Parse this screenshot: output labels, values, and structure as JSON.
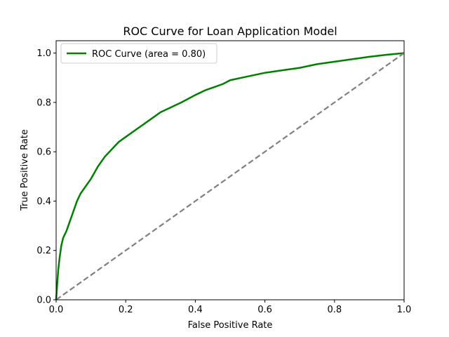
{
  "chart_data": {
    "type": "line",
    "title": "ROC Curve for Loan Application Model",
    "xlabel": "False Positive Rate",
    "ylabel": "True Positive Rate",
    "xlim": [
      0.0,
      1.0
    ],
    "ylim": [
      0.0,
      1.05
    ],
    "x_ticks": [
      "0.0",
      "0.2",
      "0.4",
      "0.6",
      "0.8",
      "1.0"
    ],
    "y_ticks": [
      "0.0",
      "0.2",
      "0.4",
      "0.6",
      "0.8",
      "1.0"
    ],
    "grid": false,
    "legend": {
      "placement": "top-left",
      "entries": [
        "ROC Curve (area = 0.80)"
      ]
    },
    "series": [
      {
        "name": "ROC Curve (area = 0.80)",
        "color": "#008000",
        "style": "solid",
        "x": [
          0.0,
          0.003,
          0.006,
          0.01,
          0.015,
          0.02,
          0.03,
          0.04,
          0.05,
          0.06,
          0.07,
          0.08,
          0.09,
          0.1,
          0.12,
          0.14,
          0.16,
          0.18,
          0.2,
          0.22,
          0.25,
          0.28,
          0.3,
          0.33,
          0.36,
          0.38,
          0.4,
          0.43,
          0.46,
          0.48,
          0.5,
          0.55,
          0.6,
          0.65,
          0.7,
          0.75,
          0.8,
          0.85,
          0.9,
          0.95,
          1.0
        ],
        "y": [
          0.0,
          0.06,
          0.12,
          0.17,
          0.22,
          0.25,
          0.28,
          0.32,
          0.36,
          0.4,
          0.43,
          0.45,
          0.47,
          0.49,
          0.54,
          0.58,
          0.61,
          0.64,
          0.66,
          0.68,
          0.71,
          0.74,
          0.76,
          0.78,
          0.8,
          0.815,
          0.83,
          0.85,
          0.865,
          0.875,
          0.89,
          0.905,
          0.92,
          0.93,
          0.94,
          0.955,
          0.965,
          0.975,
          0.985,
          0.993,
          1.0
        ]
      },
      {
        "name": "",
        "color": "#808080",
        "style": "dashed",
        "x": [
          0.0,
          1.0
        ],
        "y": [
          0.0,
          1.0
        ]
      }
    ]
  }
}
